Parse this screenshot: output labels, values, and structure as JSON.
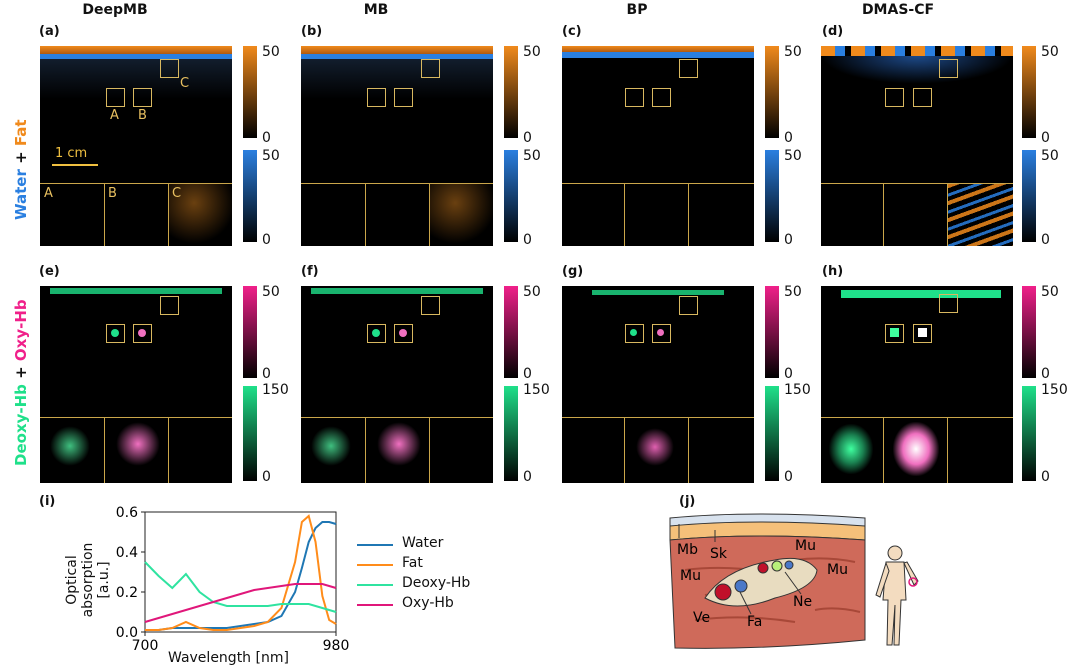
{
  "columns": [
    "DeepMB",
    "MB",
    "BP",
    "DMAS-CF"
  ],
  "panel_labels_top": [
    "(a)",
    "(b)",
    "(c)",
    "(d)"
  ],
  "panel_labels_bottom": [
    "(e)",
    "(f)",
    "(g)",
    "(h)"
  ],
  "row1_label": {
    "part1": "Water",
    "plus": " + ",
    "part2": "Fat"
  },
  "row2_label": {
    "part1": "Deoxy-Hb",
    "plus": " + ",
    "part2": "Oxy-Hb"
  },
  "roi_labels": [
    "A",
    "B",
    "C"
  ],
  "scalebar": "1 cm",
  "colorbars": {
    "fat": {
      "max": "50",
      "min": "0",
      "color": "#f08a1c"
    },
    "water": {
      "max": "50",
      "min": "0",
      "color": "#2a7fe0"
    },
    "oxy": {
      "max": "50",
      "min": "0",
      "color": "#f0208a"
    },
    "deoxy": {
      "max": "150",
      "min": "0",
      "color": "#1fe08a"
    }
  },
  "panel_i": {
    "label": "(i)",
    "chart_data": {
      "type": "line",
      "xlabel": "Wavelength [nm]",
      "ylabel_line1": "Optical",
      "ylabel_line2": "absorption [a.u.]",
      "xlim": [
        700,
        980
      ],
      "ylim": [
        0,
        0.6
      ],
      "x_ticks": [
        "700",
        "980"
      ],
      "y_ticks": [
        "0.0",
        "0.2",
        "0.4",
        "0.6"
      ],
      "x": [
        700,
        720,
        740,
        760,
        780,
        800,
        820,
        840,
        860,
        880,
        900,
        920,
        930,
        940,
        950,
        960,
        970,
        980
      ],
      "series": [
        {
          "name": "Water",
          "color": "#1f77b4",
          "values": [
            0.01,
            0.01,
            0.02,
            0.02,
            0.02,
            0.02,
            0.02,
            0.03,
            0.04,
            0.05,
            0.08,
            0.2,
            0.32,
            0.45,
            0.52,
            0.55,
            0.55,
            0.54
          ]
        },
        {
          "name": "Fat",
          "color": "#ff8c1a",
          "values": [
            0.01,
            0.01,
            0.02,
            0.05,
            0.02,
            0.01,
            0.01,
            0.02,
            0.03,
            0.05,
            0.12,
            0.35,
            0.55,
            0.58,
            0.45,
            0.18,
            0.06,
            0.04
          ]
        },
        {
          "name": "Deoxy-Hb",
          "color": "#2fe3a0",
          "values": [
            0.35,
            0.28,
            0.22,
            0.29,
            0.2,
            0.15,
            0.13,
            0.13,
            0.13,
            0.13,
            0.14,
            0.14,
            0.14,
            0.14,
            0.13,
            0.12,
            0.11,
            0.1
          ]
        },
        {
          "name": "Oxy-Hb",
          "color": "#e0177a",
          "values": [
            0.05,
            0.07,
            0.09,
            0.11,
            0.13,
            0.15,
            0.17,
            0.19,
            0.21,
            0.22,
            0.23,
            0.24,
            0.24,
            0.24,
            0.24,
            0.24,
            0.23,
            0.22
          ]
        }
      ]
    }
  },
  "panel_j": {
    "label": "(j)",
    "tissue_labels": [
      "Mb",
      "Sk",
      "Mu",
      "Mu",
      "Mu",
      "Ne",
      "Ve",
      "Fa"
    ]
  }
}
